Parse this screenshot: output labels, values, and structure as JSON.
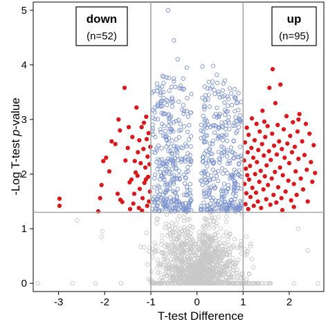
{
  "chart_data": {
    "type": "scatter",
    "xlabel": "T-test Difference",
    "ylabel_prefix": "-Log T-test ",
    "ylabel_italic": "p",
    "ylabel_suffix": "-value",
    "xlim": [
      -3.55,
      2.75
    ],
    "ylim": [
      -0.15,
      5.15
    ],
    "x_ticks": [
      -3,
      -2,
      -1,
      0,
      1,
      2
    ],
    "x_tick_labels": [
      "-3",
      "-2",
      "-1",
      "0",
      "1",
      "2"
    ],
    "y_ticks": [
      0,
      1,
      2,
      3,
      4,
      5
    ],
    "y_tick_labels": [
      "0",
      "1",
      "2",
      "3",
      "4",
      "5"
    ],
    "thresholds": {
      "x_low": -1,
      "x_high": 1,
      "y": 1.3
    },
    "colors": {
      "nonsignificant": "#c8c8c8",
      "significant": "#7b93cf",
      "down": "#d7191c",
      "up": "#d7191c",
      "threshold_line": "#a6a6a6"
    },
    "annotations": {
      "down": {
        "label": "down",
        "count": "(n=52)"
      },
      "up": {
        "label": "up",
        "count": "(n=95)"
      }
    },
    "series": [
      {
        "group": "down",
        "marker": "filled",
        "points": [
          [
            -2.98,
            1.55
          ],
          [
            -2.98,
            1.42
          ],
          [
            -2.14,
            1.32
          ],
          [
            -2.1,
            1.56
          ],
          [
            -2.07,
            1.8
          ],
          [
            -2.03,
            2.24
          ],
          [
            -1.97,
            2.3
          ],
          [
            -1.9,
            2.05
          ],
          [
            -1.85,
            2.6
          ],
          [
            -1.77,
            2.55
          ],
          [
            -1.72,
            1.64
          ],
          [
            -1.7,
            3.0
          ],
          [
            -1.67,
            2.8
          ],
          [
            -1.66,
            1.53
          ],
          [
            -1.62,
            1.49
          ],
          [
            -1.57,
            3.58
          ],
          [
            -1.55,
            2.25
          ],
          [
            -1.5,
            2.48
          ],
          [
            -1.48,
            2.86
          ],
          [
            -1.45,
            1.36
          ],
          [
            -1.42,
            1.9
          ],
          [
            -1.4,
            2.68
          ],
          [
            -1.38,
            1.46
          ],
          [
            -1.36,
            1.64
          ],
          [
            -1.33,
            2.03
          ],
          [
            -1.31,
            3.22
          ],
          [
            -1.28,
            2.4
          ],
          [
            -1.26,
            1.38
          ],
          [
            -1.24,
            1.73
          ],
          [
            -1.22,
            2.2
          ],
          [
            -1.2,
            2.86
          ],
          [
            -1.18,
            1.56
          ],
          [
            -1.16,
            2.46
          ],
          [
            -1.14,
            1.84
          ],
          [
            -1.12,
            2.12
          ],
          [
            -1.1,
            3.05
          ],
          [
            -1.09,
            2.64
          ],
          [
            -1.08,
            1.42
          ],
          [
            -1.07,
            2.32
          ],
          [
            -1.06,
            1.95
          ],
          [
            -1.05,
            2.75
          ],
          [
            -1.04,
            1.5
          ],
          [
            -1.03,
            2.18
          ],
          [
            -1.02,
            1.68
          ],
          [
            -1.01,
            2.5
          ],
          [
            -1.15,
            2.94
          ],
          [
            -1.29,
            1.97
          ],
          [
            -1.19,
            1.33
          ],
          [
            -1.11,
            1.9
          ],
          [
            -1.25,
            2.62
          ],
          [
            -1.35,
            2.24
          ],
          [
            -1.46,
            1.85
          ]
        ]
      },
      {
        "group": "up",
        "marker": "filled",
        "points": [
          [
            1.02,
            2.25
          ],
          [
            1.03,
            1.82
          ],
          [
            1.04,
            2.58
          ],
          [
            1.05,
            1.45
          ],
          [
            1.06,
            2.1
          ],
          [
            1.07,
            1.65
          ],
          [
            1.08,
            2.85
          ],
          [
            1.09,
            1.98
          ],
          [
            1.1,
            2.4
          ],
          [
            1.11,
            1.36
          ],
          [
            1.12,
            2.72
          ],
          [
            1.13,
            1.9
          ],
          [
            1.15,
            2.15
          ],
          [
            1.16,
            1.58
          ],
          [
            1.18,
            2.48
          ],
          [
            1.19,
            3.02
          ],
          [
            1.2,
            1.75
          ],
          [
            1.22,
            2.3
          ],
          [
            1.23,
            1.42
          ],
          [
            1.25,
            2.62
          ],
          [
            1.26,
            2.0
          ],
          [
            1.28,
            1.66
          ],
          [
            1.29,
            2.92
          ],
          [
            1.3,
            2.22
          ],
          [
            1.32,
            1.5
          ],
          [
            1.33,
            2.44
          ],
          [
            1.35,
            1.86
          ],
          [
            1.36,
            2.78
          ],
          [
            1.38,
            2.06
          ],
          [
            1.39,
            1.38
          ],
          [
            1.41,
            2.55
          ],
          [
            1.42,
            3.16
          ],
          [
            1.44,
            1.72
          ],
          [
            1.45,
            2.34
          ],
          [
            1.47,
            1.96
          ],
          [
            1.48,
            2.68
          ],
          [
            1.5,
            1.54
          ],
          [
            1.51,
            2.16
          ],
          [
            1.53,
            2.88
          ],
          [
            1.54,
            1.8
          ],
          [
            1.56,
            2.42
          ],
          [
            1.57,
            3.58
          ],
          [
            1.59,
            1.44
          ],
          [
            1.6,
            2.26
          ],
          [
            1.62,
            1.92
          ],
          [
            1.63,
            2.74
          ],
          [
            1.64,
            3.92
          ],
          [
            1.66,
            1.62
          ],
          [
            1.67,
            2.52
          ],
          [
            1.69,
            2.04
          ],
          [
            1.7,
            3.3
          ],
          [
            1.72,
            1.48
          ],
          [
            1.73,
            2.36
          ],
          [
            1.75,
            2.9
          ],
          [
            1.76,
            1.76
          ],
          [
            1.78,
            2.6
          ],
          [
            1.8,
            2.12
          ],
          [
            1.81,
            3.64
          ],
          [
            1.83,
            1.56
          ],
          [
            1.84,
            2.46
          ],
          [
            1.86,
            1.98
          ],
          [
            1.88,
            2.82
          ],
          [
            1.9,
            2.3
          ],
          [
            1.92,
            1.68
          ],
          [
            1.94,
            3.06
          ],
          [
            1.96,
            2.56
          ],
          [
            1.98,
            1.88
          ],
          [
            2.0,
            2.2
          ],
          [
            2.02,
            2.7
          ],
          [
            2.04,
            1.52
          ],
          [
            2.06,
            2.4
          ],
          [
            2.08,
            2.95
          ],
          [
            2.1,
            1.82
          ],
          [
            2.12,
            2.5
          ],
          [
            2.14,
            2.05
          ],
          [
            2.16,
            1.62
          ],
          [
            2.18,
            2.78
          ],
          [
            2.2,
            2.28
          ],
          [
            2.22,
            3.1
          ],
          [
            2.25,
            1.92
          ],
          [
            2.28,
            2.6
          ],
          [
            2.3,
            1.72
          ],
          [
            2.33,
            2.35
          ],
          [
            2.36,
            2.92
          ],
          [
            2.38,
            2.08
          ],
          [
            2.4,
            1.5
          ],
          [
            2.44,
            2.74
          ],
          [
            2.47,
            2.22
          ],
          [
            2.5,
            1.86
          ],
          [
            2.53,
            2.53
          ],
          [
            2.56,
            2.02
          ],
          [
            2.2,
            3.0
          ],
          [
            1.46,
            2.96
          ],
          [
            1.85,
            1.34
          ],
          [
            2.1,
            1.4
          ]
        ]
      }
    ]
  }
}
